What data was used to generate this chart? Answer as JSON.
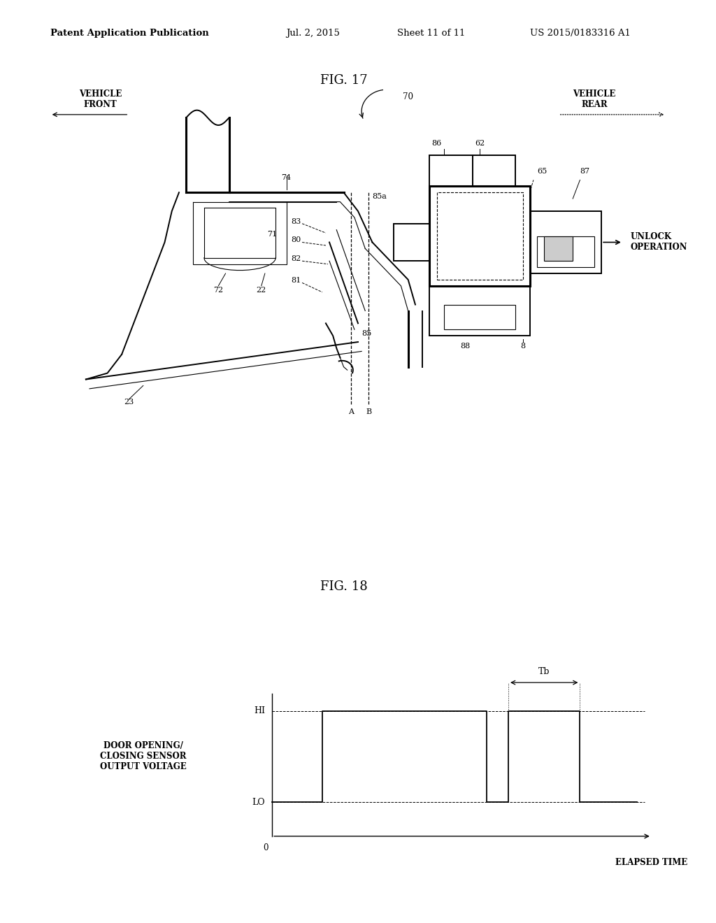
{
  "background_color": "#ffffff",
  "header_text": "Patent Application Publication",
  "header_date": "Jul. 2, 2015",
  "header_sheet": "Sheet 11 of 11",
  "header_patent": "US 2015/0183316 A1",
  "fig17_title": "FIG. 17",
  "fig18_title": "FIG. 18",
  "fig17_labels": {
    "vehicle_front": "VEHICLE\nFRONT",
    "vehicle_rear": "VEHICLE\nREAR",
    "unlock_operation": "UNLOCK\nOPERATION",
    "70": "70",
    "74": "74",
    "72": "72",
    "22": "22",
    "71": "71",
    "23": "23",
    "83": "83",
    "80": "80",
    "82": "82",
    "81": "81",
    "85": "85",
    "85a": "85a",
    "86": "86",
    "62": "62",
    "65": "65",
    "87": "87",
    "88": "88",
    "8": "8",
    "A": "A",
    "B": "B"
  },
  "fig18_labels": {
    "ylabel": "DOOR OPENING/\nCLOSING SENSOR\nOUTPUT VOLTAGE",
    "xlabel": "ELAPSED TIME",
    "hi": "HI",
    "lo": "LO",
    "zero": "0",
    "tb": "Tb"
  }
}
